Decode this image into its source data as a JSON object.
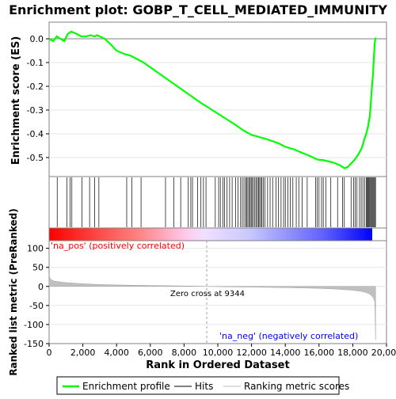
{
  "chart_data": {
    "type": "line",
    "title": "Enrichment plot: GOBP_T_CELL_MEDIATED_IMMUNITY",
    "xlabel": "Rank in Ordered Dataset",
    "x_ticks": [
      0,
      2000,
      4000,
      6000,
      8000,
      10000,
      12000,
      14000,
      16000,
      18000,
      20000
    ],
    "x_tick_labels": [
      "0",
      "2,000",
      "4,000",
      "6,000",
      "8,000",
      "10,000",
      "12,000",
      "14,000",
      "16,000",
      "18,000",
      "20,000"
    ],
    "xlim": [
      0,
      20000
    ],
    "es_panel": {
      "ylabel": "Enrichment score (ES)",
      "ylim": [
        -0.58,
        0.07
      ],
      "y_ticks": [
        0.0,
        -0.1,
        -0.2,
        -0.3,
        -0.4,
        -0.5
      ],
      "y_tick_labels": [
        "0.0",
        "-0.1",
        "-0.2",
        "-0.3",
        "-0.4",
        "-0.5"
      ],
      "series": [
        {
          "name": "Enrichment profile",
          "color": "#00ff00",
          "x": [
            0,
            250,
            450,
            900,
            1100,
            1300,
            1500,
            1650,
            1900,
            2200,
            2450,
            2700,
            2850,
            3000,
            3300,
            3600,
            4000,
            4500,
            4800,
            5200,
            5600,
            6000,
            7000,
            8000,
            9000,
            9344,
            10000,
            11000,
            11500,
            12000,
            12300,
            12500,
            12800,
            13200,
            13600,
            14000,
            14500,
            15000,
            15500,
            15800,
            16000,
            16200,
            16500,
            16800,
            17000,
            17300,
            17500,
            17700,
            17900,
            18100,
            18300,
            18500,
            18600,
            18700,
            18800,
            18900,
            19000,
            19050,
            19100,
            19150,
            19200,
            19250,
            19300,
            19350
          ],
          "y": [
            0.0,
            -0.01,
            0.01,
            -0.01,
            0.02,
            0.03,
            0.025,
            0.02,
            0.01,
            0.01,
            0.015,
            0.01,
            0.015,
            0.01,
            0.0,
            -0.02,
            -0.05,
            -0.065,
            -0.07,
            -0.085,
            -0.1,
            -0.12,
            -0.17,
            -0.22,
            -0.27,
            -0.285,
            -0.315,
            -0.36,
            -0.385,
            -0.405,
            -0.41,
            -0.415,
            -0.42,
            -0.43,
            -0.44,
            -0.455,
            -0.465,
            -0.48,
            -0.495,
            -0.505,
            -0.51,
            -0.51,
            -0.515,
            -0.52,
            -0.525,
            -0.535,
            -0.545,
            -0.54,
            -0.525,
            -0.51,
            -0.49,
            -0.465,
            -0.445,
            -0.42,
            -0.4,
            -0.37,
            -0.33,
            -0.29,
            -0.24,
            -0.19,
            -0.15,
            -0.08,
            -0.02,
            0.005
          ]
        }
      ]
    },
    "hits_panel": {
      "legend_name": "Hits",
      "color": "#000000",
      "hit_ranks": [
        480,
        1050,
        1250,
        1350,
        1950,
        2400,
        2700,
        2950,
        4600,
        4900,
        5450,
        6900,
        7400,
        7800,
        8250,
        8400,
        8500,
        8800,
        9000,
        9150,
        9300,
        9850,
        10050,
        10150,
        10300,
        10400,
        10550,
        10700,
        10850,
        11050,
        11200,
        11350,
        11450,
        11550,
        11650,
        11700,
        11780,
        11850,
        11920,
        11980,
        12050,
        12120,
        12200,
        12280,
        12350,
        12420,
        12480,
        12550,
        12620,
        12700,
        12800,
        12950,
        13100,
        13250,
        13450,
        13600,
        13750,
        13900,
        14000,
        14150,
        14300,
        14450,
        14650,
        14800,
        15000,
        15300,
        15800,
        15900,
        16000,
        16150,
        16250,
        16400,
        16700,
        17100,
        17400,
        17500,
        17900,
        18050,
        18150,
        18250,
        18400,
        18500,
        18600,
        18700,
        18800,
        18850,
        18900,
        18950,
        19000,
        19050,
        19100,
        19150,
        19200,
        19250,
        19300,
        19350
      ]
    },
    "ranking_panel": {
      "ylabel": "Ranked list metric (PreRanked)",
      "ylim": [
        -150,
        120
      ],
      "y_ticks": [
        100,
        50,
        0,
        -50,
        -100,
        -150
      ],
      "y_tick_labels": [
        "100",
        "50",
        "0",
        "-50",
        "-100",
        "-150"
      ],
      "legend_name": "Ranking metric scores",
      "color": "#c0c0c0",
      "x": [
        0,
        50,
        150,
        300,
        600,
        1000,
        2000,
        3000,
        4000,
        5000,
        6000,
        7000,
        8000,
        9000,
        9344,
        10000,
        11000,
        12000,
        13000,
        14000,
        15000,
        16000,
        17000,
        17500,
        18000,
        18500,
        18800,
        19000,
        19100,
        19200,
        19250,
        19300,
        19320,
        19340,
        19350
      ],
      "y": [
        30,
        22,
        17,
        14,
        12,
        10,
        7,
        5,
        4,
        3,
        2.5,
        1.8,
        1.2,
        0.5,
        0,
        -0.5,
        -1.2,
        -1.8,
        -2.5,
        -3.2,
        -4,
        -5,
        -7,
        -8.5,
        -10,
        -13,
        -16,
        -20,
        -24,
        -28,
        -33,
        -40,
        -60,
        -100,
        -140
      ],
      "annotations": {
        "pos_label": "'na_pos' (positively correlated)",
        "neg_label": "'na_neg' (negatively correlated)",
        "zero_cross_label": "Zero cross at 9344",
        "zero_cross": 9344,
        "pos_color": "#ff0000",
        "neg_color": "#0000ff"
      }
    },
    "legend": {
      "placement": "bottom",
      "entries": [
        "Enrichment profile",
        "Hits",
        "Ranking metric scores"
      ]
    }
  }
}
